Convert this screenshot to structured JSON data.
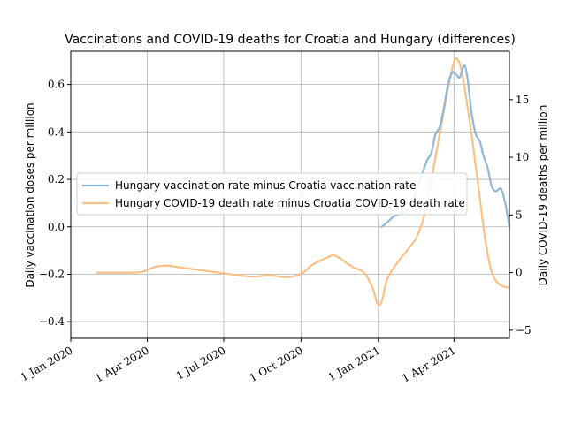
{
  "chart_data": {
    "type": "line",
    "title": "Vaccinations and COVID-19 deaths for Croatia and Hungary (differences)",
    "xlabel": "",
    "ylabel_left": "Daily vaccination doses per million",
    "ylabel_right": "Daily COVID-19 deaths per million",
    "grid": true,
    "legend_placement": "center-left",
    "x_ticks": [
      "2020-01-01",
      "2020-04-01",
      "2020-07-01",
      "2020-10-01",
      "2021-01-01",
      "2021-04-01"
    ],
    "x_tick_labels": [
      "1 Jan 2020",
      "1 Apr 2020",
      "1 Jul 2020",
      "1 Oct 2020",
      "1 Jan 2021",
      "1 Apr 2021"
    ],
    "xlim": [
      "2020-01-01",
      "2021-06-06"
    ],
    "ylim_left": [
      -0.47,
      0.74
    ],
    "yticks_left": [
      -0.4,
      -0.2,
      0.0,
      0.2,
      0.4,
      0.6
    ],
    "ytick_labels_left": [
      "−0.4",
      "−0.2",
      "0.0",
      "0.2",
      "0.4",
      "0.6"
    ],
    "ylim_right": [
      -5.7,
      19.2
    ],
    "yticks_right": [
      -5,
      0,
      5,
      10,
      15
    ],
    "ytick_labels_right": [
      "−5",
      "0",
      "5",
      "10",
      "15"
    ],
    "series": [
      {
        "name": "Hungary vaccination rate minus Croatia vaccination rate",
        "axis": "left",
        "color": "#8fb8d8",
        "points": [
          [
            "2021-01-05",
            0.0
          ],
          [
            "2021-01-12",
            0.02
          ],
          [
            "2021-01-20",
            0.045
          ],
          [
            "2021-01-31",
            0.06
          ],
          [
            "2021-02-10",
            0.1
          ],
          [
            "2021-02-20",
            0.2
          ],
          [
            "2021-02-28",
            0.28
          ],
          [
            "2021-03-05",
            0.31
          ],
          [
            "2021-03-10",
            0.39
          ],
          [
            "2021-03-15",
            0.42
          ],
          [
            "2021-03-20",
            0.5
          ],
          [
            "2021-03-25",
            0.6
          ],
          [
            "2021-03-30",
            0.65
          ],
          [
            "2021-04-04",
            0.64
          ],
          [
            "2021-04-08",
            0.63
          ],
          [
            "2021-04-13",
            0.68
          ],
          [
            "2021-04-17",
            0.63
          ],
          [
            "2021-04-22",
            0.48
          ],
          [
            "2021-04-27",
            0.39
          ],
          [
            "2021-05-02",
            0.36
          ],
          [
            "2021-05-06",
            0.3
          ],
          [
            "2021-05-11",
            0.25
          ],
          [
            "2021-05-16",
            0.17
          ],
          [
            "2021-05-21",
            0.15
          ],
          [
            "2021-05-27",
            0.16
          ],
          [
            "2021-06-01",
            0.1
          ],
          [
            "2021-06-06",
            0.0
          ]
        ]
      },
      {
        "name": "Hungary COVID-19 death rate minus Croatia COVID-19 death rate",
        "axis": "right",
        "color": "#fcc085",
        "points": [
          [
            "2020-02-01",
            0.0
          ],
          [
            "2020-03-01",
            0.0
          ],
          [
            "2020-03-25",
            0.05
          ],
          [
            "2020-04-10",
            0.5
          ],
          [
            "2020-04-25",
            0.6
          ],
          [
            "2020-05-05",
            0.5
          ],
          [
            "2020-05-20",
            0.35
          ],
          [
            "2020-06-15",
            0.1
          ],
          [
            "2020-07-15",
            -0.2
          ],
          [
            "2020-08-05",
            -0.35
          ],
          [
            "2020-08-25",
            -0.25
          ],
          [
            "2020-09-15",
            -0.4
          ],
          [
            "2020-10-01",
            -0.1
          ],
          [
            "2020-10-15",
            0.7
          ],
          [
            "2020-11-01",
            1.3
          ],
          [
            "2020-11-08",
            1.5
          ],
          [
            "2020-11-15",
            1.3
          ],
          [
            "2020-12-01",
            0.5
          ],
          [
            "2020-12-15",
            0.0
          ],
          [
            "2020-12-25",
            -1.3
          ],
          [
            "2020-12-31",
            -2.7
          ],
          [
            "2021-01-05",
            -2.5
          ],
          [
            "2021-01-12",
            -0.5
          ],
          [
            "2021-01-25",
            1.0
          ],
          [
            "2021-02-05",
            2.0
          ],
          [
            "2021-02-15",
            3.0
          ],
          [
            "2021-02-25",
            5.0
          ],
          [
            "2021-03-05",
            8.0
          ],
          [
            "2021-03-15",
            12.0
          ],
          [
            "2021-03-25",
            16.0
          ],
          [
            "2021-04-01",
            18.3
          ],
          [
            "2021-04-05",
            18.5
          ],
          [
            "2021-04-10",
            17.5
          ],
          [
            "2021-04-20",
            13.0
          ],
          [
            "2021-04-30",
            7.5
          ],
          [
            "2021-05-08",
            3.0
          ],
          [
            "2021-05-15",
            0.3
          ],
          [
            "2021-05-22",
            -0.8
          ],
          [
            "2021-05-30",
            -1.2
          ],
          [
            "2021-06-06",
            -1.3
          ]
        ]
      }
    ]
  }
}
